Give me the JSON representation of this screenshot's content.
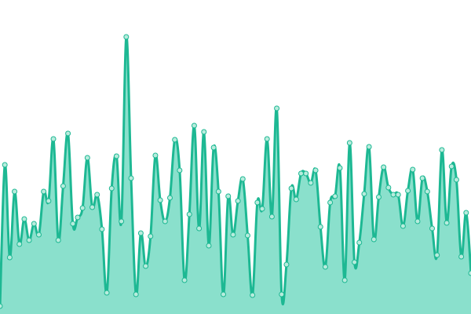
{
  "chart_data": {
    "type": "area",
    "values": [
      10,
      190,
      72,
      156,
      89,
      121,
      94,
      115,
      101,
      156,
      144,
      223,
      94,
      163,
      230,
      115,
      123,
      135,
      199,
      136,
      152,
      108,
      27,
      160,
      201,
      118,
      353,
      173,
      25,
      103,
      61,
      99,
      202,
      145,
      118,
      148,
      222,
      183,
      43,
      127,
      240,
      109,
      232,
      87,
      212,
      156,
      25,
      150,
      101,
      144,
      172,
      100,
      24,
      142,
      134,
      223,
      124,
      262,
      25,
      63,
      160,
      146,
      179,
      179,
      167,
      183,
      111,
      60,
      142,
      150,
      186,
      43,
      218,
      66,
      91,
      153,
      213,
      95,
      149,
      187,
      161,
      152,
      152,
      112,
      157,
      184,
      118,
      173,
      156,
      109,
      75,
      209,
      116,
      188,
      171,
      73,
      129,
      52
    ],
    "ylim": [
      0,
      400
    ],
    "color": "#1db893",
    "fill": "#8ae0cc",
    "marker_fill": "#b8ecdd"
  }
}
